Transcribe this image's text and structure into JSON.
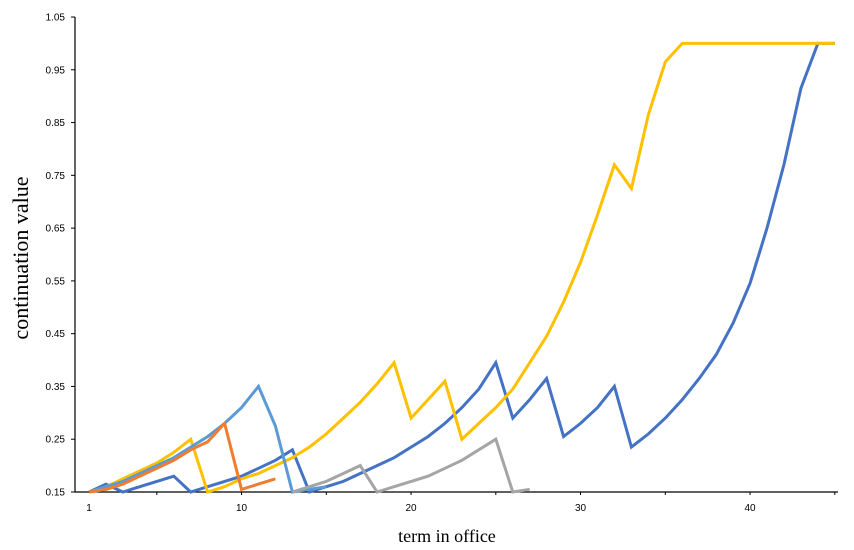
{
  "chart_data": {
    "type": "line",
    "title": "",
    "xlabel": "term in office",
    "ylabel": "continuation value",
    "xlim": [
      1,
      46
    ],
    "ylim": [
      0.15,
      1.05
    ],
    "x_ticks": [
      1,
      10,
      20,
      30,
      40
    ],
    "y_ticks": [
      0.15,
      0.25,
      0.35,
      0.45,
      0.55,
      0.65,
      0.75,
      0.85,
      0.95,
      1.05
    ],
    "y_tick_labels": [
      "0.15",
      "0.25",
      "0.35",
      "0.45",
      "0.55",
      "0.65",
      "0.75",
      "0.85",
      "0.95",
      "1.05"
    ],
    "grid": false,
    "legend": "none",
    "series": [
      {
        "color": "#4472C4",
        "x": [
          1,
          2,
          3,
          4,
          5,
          6,
          7,
          8,
          9,
          10,
          11,
          12,
          13,
          14,
          15,
          16,
          17,
          18,
          19,
          20,
          21,
          22,
          23,
          24,
          25,
          26,
          27,
          28,
          29,
          30,
          31,
          32,
          33,
          34,
          35,
          36,
          37,
          38,
          39,
          40,
          41,
          42,
          43,
          44,
          45
        ],
        "y": [
          0.15,
          0.165,
          0.15,
          0.16,
          0.17,
          0.18,
          0.15,
          0.16,
          0.17,
          0.18,
          0.195,
          0.21,
          0.23,
          0.15,
          0.16,
          0.17,
          0.185,
          0.2,
          0.215,
          0.235,
          0.255,
          0.28,
          0.31,
          0.345,
          0.395,
          0.29,
          0.325,
          0.365,
          0.255,
          0.28,
          0.31,
          0.35,
          0.235,
          0.26,
          0.29,
          0.325,
          0.365,
          0.41,
          0.47,
          0.545,
          0.65,
          0.77,
          0.915,
          1.0,
          1.0
        ]
      },
      {
        "color": "#FFC000",
        "x": [
          1,
          2,
          3,
          4,
          5,
          6,
          7,
          8,
          9,
          10,
          11,
          12,
          13,
          14,
          15,
          16,
          17,
          18,
          19,
          20,
          21,
          22,
          23,
          24,
          25,
          26,
          27,
          28,
          29,
          30,
          31,
          32,
          33,
          34,
          35,
          36,
          37,
          38,
          39,
          40,
          41,
          42,
          43,
          44,
          45
        ],
        "y": [
          0.15,
          0.16,
          0.175,
          0.19,
          0.205,
          0.225,
          0.25,
          0.15,
          0.16,
          0.175,
          0.185,
          0.2,
          0.215,
          0.235,
          0.26,
          0.29,
          0.32,
          0.355,
          0.395,
          0.29,
          0.325,
          0.36,
          0.25,
          0.28,
          0.31,
          0.345,
          0.395,
          0.445,
          0.51,
          0.585,
          0.675,
          0.77,
          0.725,
          0.865,
          0.965,
          1.0,
          1.0,
          1.0,
          1.0,
          1.0,
          1.0,
          1.0,
          1.0,
          1.0,
          1.0
        ]
      },
      {
        "color": "#5B9BD5",
        "x": [
          1,
          2,
          3,
          4,
          5,
          6,
          7,
          8,
          9,
          10,
          11,
          12,
          13,
          14,
          15
        ],
        "y": [
          0.15,
          0.16,
          0.17,
          0.185,
          0.2,
          0.215,
          0.235,
          0.255,
          0.28,
          0.31,
          0.35,
          0.275,
          0.15,
          0.155,
          0.16
        ]
      },
      {
        "color": "#ED7D31",
        "x": [
          1,
          2,
          3,
          4,
          5,
          6,
          7,
          8,
          9,
          10,
          11,
          12
        ],
        "y": [
          0.15,
          0.155,
          0.165,
          0.18,
          0.195,
          0.21,
          0.23,
          0.245,
          0.28,
          0.155,
          0.165,
          0.175
        ]
      },
      {
        "color": "#A5A5A5",
        "x": [
          13,
          14,
          15,
          16,
          17,
          18,
          19,
          20,
          21,
          22,
          23,
          24,
          25,
          26,
          27
        ],
        "y": [
          0.15,
          0.16,
          0.17,
          0.185,
          0.2,
          0.15,
          0.16,
          0.17,
          0.18,
          0.195,
          0.21,
          0.23,
          0.25,
          0.15,
          0.155
        ]
      }
    ]
  }
}
